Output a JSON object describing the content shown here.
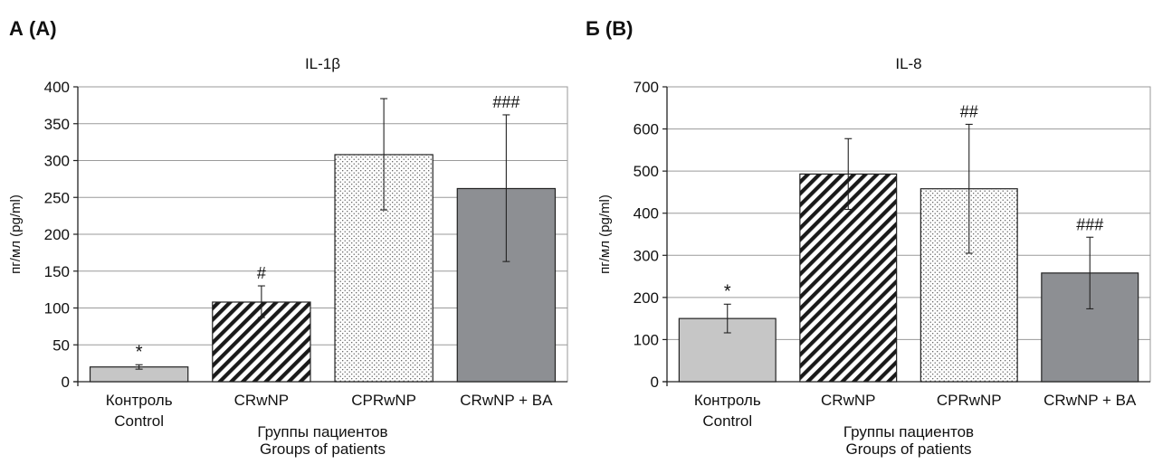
{
  "panels": [
    {
      "panel_label": "А (A)",
      "chart_data": {
        "type": "bar",
        "title": "IL-1β",
        "ylabel": "пг/мл (pg/ml)",
        "xlabel_lines": [
          "Группы пациентов",
          "Groups of patients"
        ],
        "categories": [
          [
            "Контроль",
            "Control"
          ],
          [
            "CRwNP"
          ],
          [
            "CPRwNP"
          ],
          [
            "CRwNP + BA"
          ]
        ],
        "values": [
          20,
          108,
          308,
          262
        ],
        "error": [
          [
            17,
            23
          ],
          [
            87,
            130
          ],
          [
            233,
            384
          ],
          [
            163,
            362
          ]
        ],
        "annotations": [
          "*",
          "#",
          "",
          "###"
        ],
        "ylim": [
          0,
          400
        ],
        "yticks": [
          0,
          50,
          100,
          150,
          200,
          250,
          300,
          350,
          400
        ],
        "grid": true,
        "fills": [
          "light-gray",
          "diagonal-hatch",
          "dots",
          "dark-gray"
        ],
        "colors": [
          "#c6c6c6",
          "#ffffff",
          "#ffffff",
          "#8d8f93"
        ]
      }
    },
    {
      "panel_label": "Б (B)",
      "chart_data": {
        "type": "bar",
        "title": "IL-8",
        "ylabel": "пг/мл (pg/ml)",
        "xlabel_lines": [
          "Группы пациентов",
          "Groups of patients"
        ],
        "categories": [
          [
            "Контроль",
            "Control"
          ],
          [
            "CRwNP"
          ],
          [
            "CPRwNP"
          ],
          [
            "CRwNP + BA"
          ]
        ],
        "values": [
          150,
          493,
          458,
          258
        ],
        "error": [
          [
            116,
            184
          ],
          [
            409,
            577
          ],
          [
            305,
            611
          ],
          [
            173,
            343
          ]
        ],
        "annotations": [
          "*",
          "",
          "##",
          "###"
        ],
        "ylim": [
          0,
          700
        ],
        "yticks": [
          0,
          100,
          200,
          300,
          400,
          500,
          600,
          700
        ],
        "grid": true,
        "fills": [
          "light-gray",
          "diagonal-hatch",
          "dots",
          "dark-gray"
        ],
        "colors": [
          "#c6c6c6",
          "#ffffff",
          "#ffffff",
          "#8d8f93"
        ]
      }
    }
  ]
}
